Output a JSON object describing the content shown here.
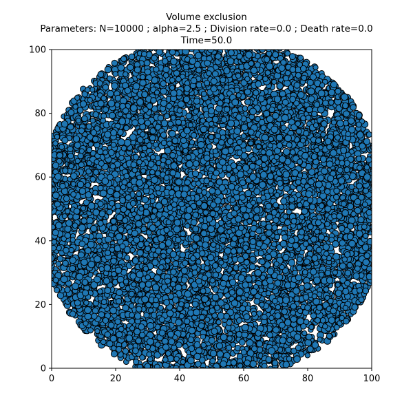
{
  "chart_data": {
    "type": "scatter",
    "title": "Volume exclusion",
    "subtitle": "Parameters: N=10000 ; alpha=2.5 ; Division rate=0.0 ; Death rate=0.0",
    "time_label": "Time=50.0",
    "xlabel": "",
    "ylabel": "",
    "xlim": [
      0,
      100
    ],
    "ylim": [
      0,
      100
    ],
    "xticks": [
      0,
      20,
      40,
      60,
      80,
      100
    ],
    "yticks": [
      0,
      20,
      40,
      60,
      80,
      100
    ],
    "grid": false,
    "marker_color": "#1f77b4",
    "marker_edge_color": "#000000",
    "point_count": 10000,
    "cluster_center": [
      50,
      50
    ],
    "cluster_shape": "disc clipped to axes, approx. radius 55 data units"
  }
}
